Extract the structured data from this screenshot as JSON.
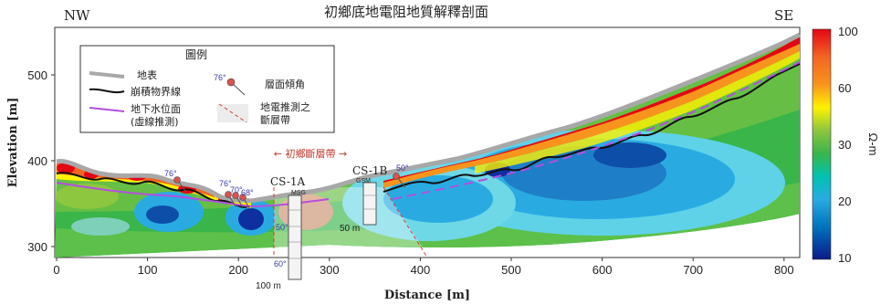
{
  "figure": {
    "title": "初鄉底地電阻地質解釋剖面",
    "direction_left": "NW",
    "direction_right": "SE",
    "xlabel": "Distance [m]",
    "ylabel": "Elevation [m]",
    "x_ticks": [
      "0",
      "100",
      "200",
      "300",
      "400",
      "500",
      "600",
      "700",
      "800"
    ],
    "y_ticks": [
      "300",
      "400",
      "500"
    ]
  },
  "legend": {
    "title": "圖例",
    "surface": "地表",
    "colluvium": "崩積物界線",
    "water_line1": "地下水位面",
    "water_line2": "(虛線推測)",
    "dip_angle": "76°",
    "dip_label": "層面傾角",
    "fault_line1": "地電推測之",
    "fault_line2": "斷層帶"
  },
  "annotations": {
    "fault_zone": "← 初鄉斷層帶 →",
    "bh1_name": "CS-1A",
    "bh1_code": "MSG",
    "bh1_depth": "100 m",
    "bh1_dip_mid": "50°",
    "bh1_dip_low": "60°",
    "bh2_name": "CS-1B",
    "bh2_code": "GSM",
    "bh2_depth": "50 m",
    "dips": [
      {
        "value": "76°"
      },
      {
        "value": "76°"
      },
      {
        "value": "70°"
      },
      {
        "value": "68°"
      },
      {
        "value": "50°"
      }
    ]
  },
  "colorbar": {
    "unit": "Ω-m",
    "ticks": [
      "100",
      "60",
      "30",
      "20",
      "10"
    ],
    "colors": [
      "#e30613",
      "#f26522",
      "#f7941d",
      "#fff200",
      "#8dc63f",
      "#39b54a",
      "#00a99d",
      "#29abe2",
      "#0072bc",
      "#1b1464"
    ]
  }
}
